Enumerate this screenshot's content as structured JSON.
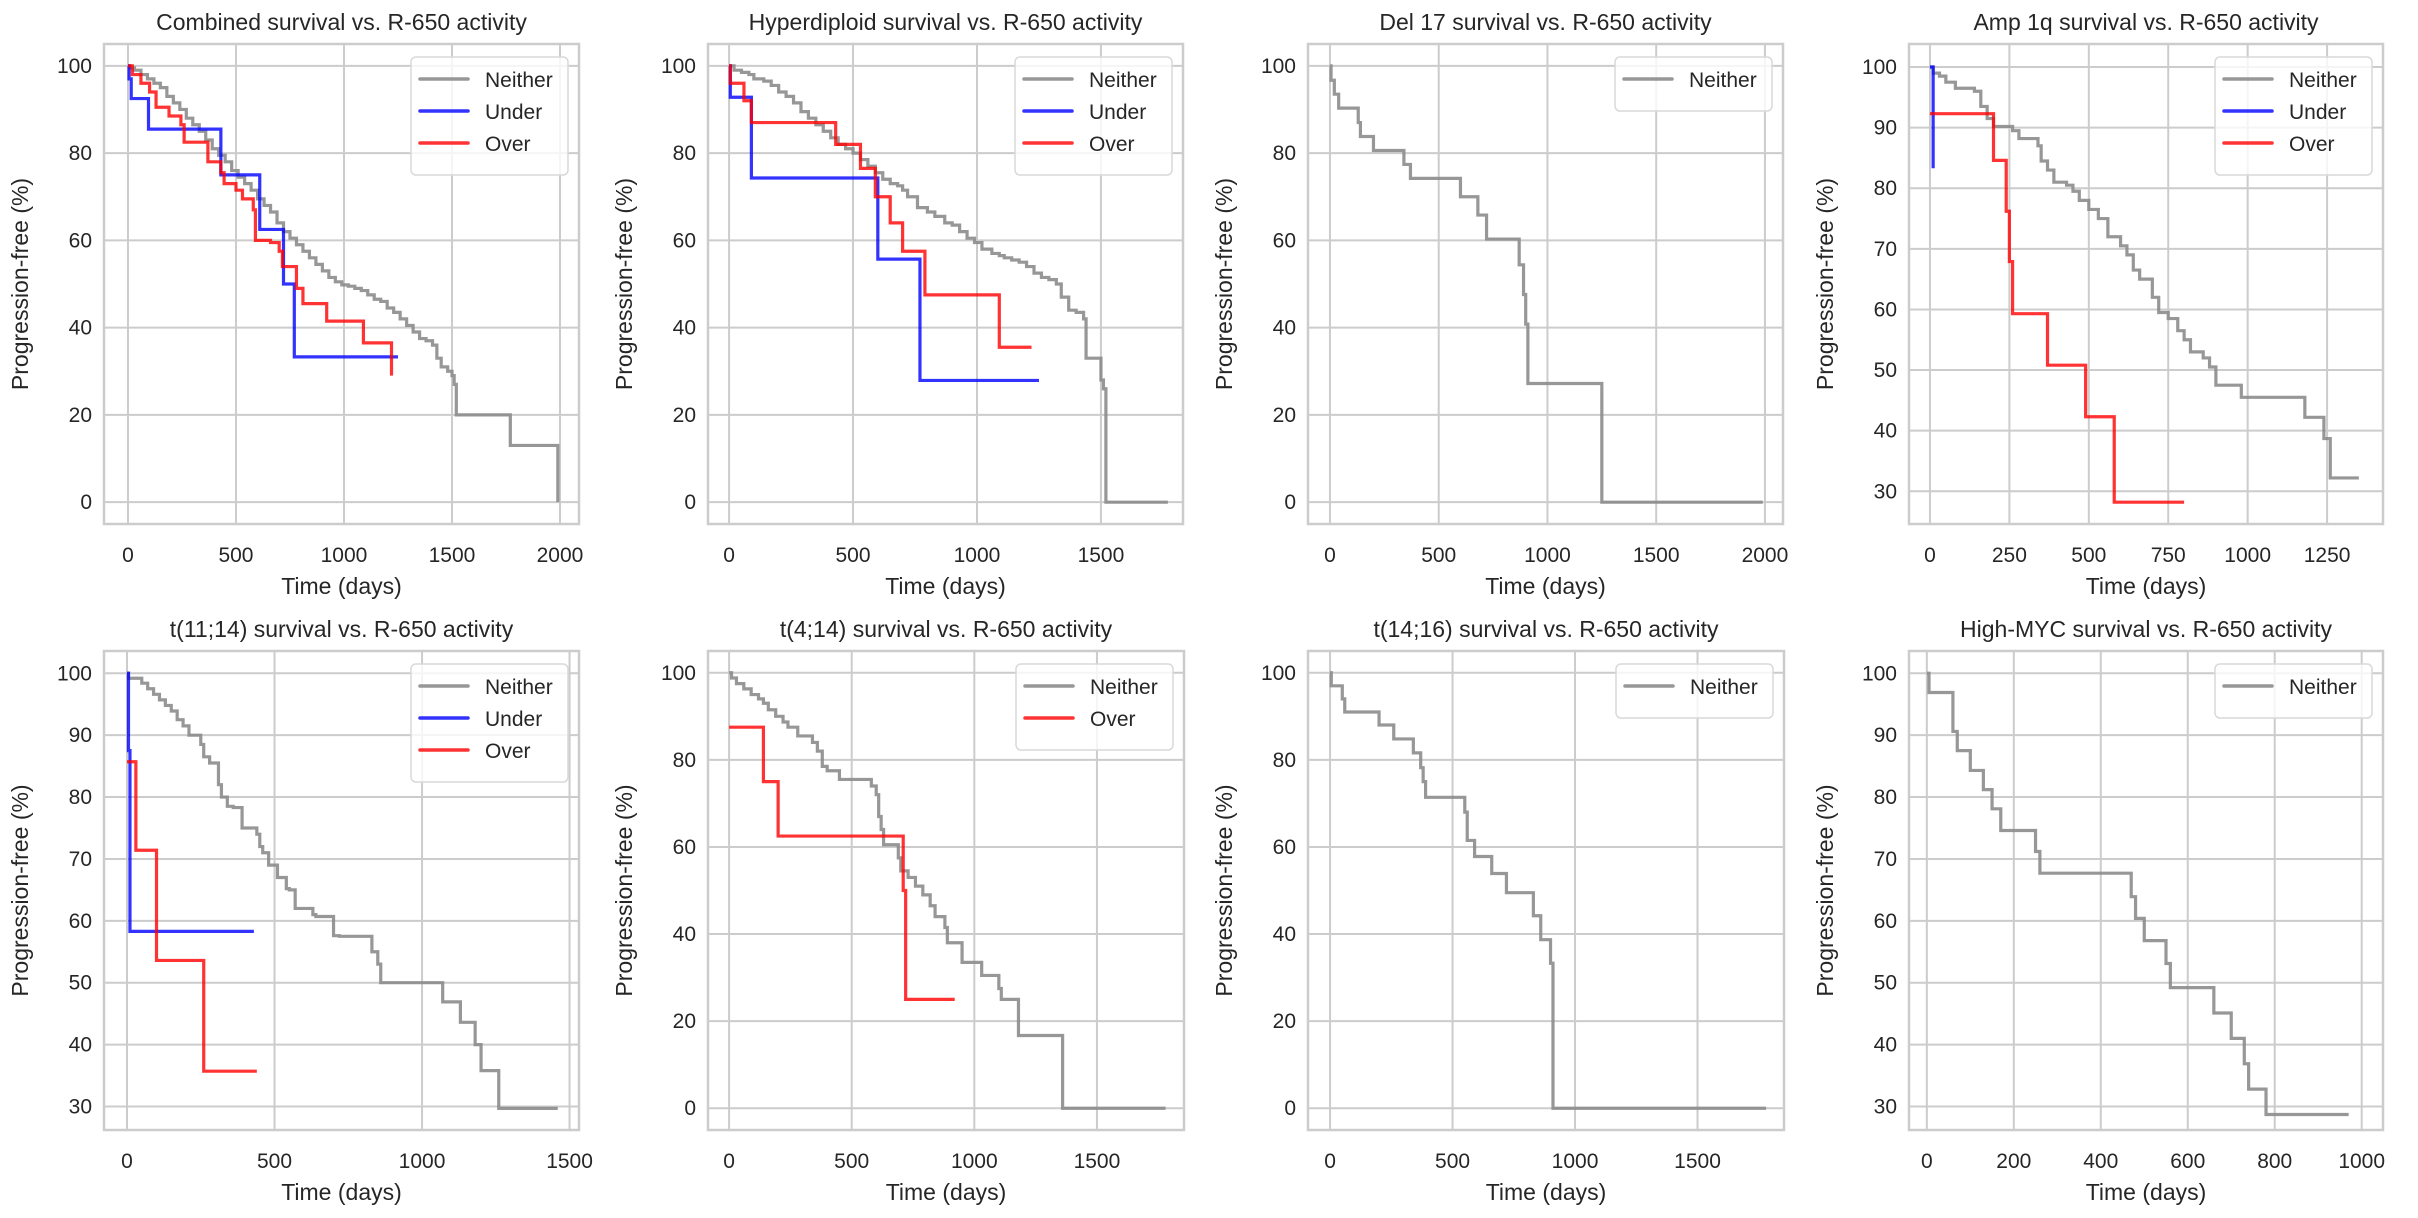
{
  "figure": {
    "background": "#ffffff",
    "grid_color": "#cccccc",
    "text_color": "#262626"
  },
  "series_styles": {
    "Neither": {
      "color": "#8c8c8c",
      "opacity": 0.9
    },
    "Under": {
      "color": "#0000ff",
      "opacity": 0.8
    },
    "Over": {
      "color": "#ff0000",
      "opacity": 0.8
    }
  },
  "chart_data": [
    {
      "type": "line",
      "step": true,
      "title": "Combined survival vs. R-650 activity",
      "xlabel": "Time (days)",
      "ylabel": "Progression-free (%)",
      "xlim": [
        -111,
        2088
      ],
      "ylim": [
        -5,
        105
      ],
      "xticks": [
        0,
        500,
        1000,
        1500,
        2000
      ],
      "yticks": [
        0,
        20,
        40,
        60,
        80,
        100
      ],
      "grid": true,
      "legend": "top-right",
      "series": [
        {
          "name": "Neither",
          "x": [
            0,
            10,
            30,
            60,
            90,
            120,
            150,
            180,
            210,
            240,
            270,
            300,
            330,
            360,
            390,
            420,
            450,
            480,
            510,
            540,
            570,
            600,
            630,
            660,
            690,
            720,
            750,
            780,
            810,
            840,
            870,
            900,
            930,
            960,
            990,
            1020,
            1050,
            1080,
            1110,
            1140,
            1170,
            1200,
            1230,
            1260,
            1290,
            1320,
            1350,
            1380,
            1410,
            1430,
            1450,
            1480,
            1500,
            1510,
            1520,
            1760,
            1770,
            1990
          ],
          "y": [
            100,
            99.5,
            99,
            98,
            97,
            96,
            95,
            93,
            91.5,
            90,
            88,
            86.5,
            85,
            83,
            81,
            79.5,
            78,
            76,
            74.5,
            73,
            71.5,
            69.5,
            68,
            66.5,
            64,
            62,
            60.5,
            59,
            57.5,
            56,
            54.5,
            53,
            51.5,
            50.5,
            49.8,
            49.5,
            49,
            48.5,
            47.5,
            46.5,
            46,
            44.5,
            43.5,
            42,
            40.5,
            39,
            37.5,
            37,
            36,
            33,
            31,
            30,
            29,
            27,
            20,
            20,
            13,
            0
          ]
        },
        {
          "name": "Under",
          "x": [
            0,
            5,
            15,
            95,
            430,
            610,
            720,
            770,
            1250
          ],
          "y": [
            100,
            97,
            92.5,
            85.5,
            75,
            62.5,
            50,
            33.3,
            33.3
          ]
        },
        {
          "name": "Over",
          "x": [
            0,
            20,
            60,
            100,
            130,
            190,
            245,
            260,
            370,
            430,
            445,
            500,
            530,
            580,
            590,
            660,
            700,
            715,
            780,
            810,
            920,
            1090,
            1220
          ],
          "y": [
            100,
            98,
            96,
            94,
            90.5,
            88.5,
            86.5,
            82.5,
            78,
            75.5,
            73,
            71.5,
            69.5,
            67,
            60,
            59.5,
            57.5,
            54,
            49,
            45.5,
            41.5,
            36.5,
            29
          ]
        }
      ]
    },
    {
      "type": "line",
      "step": true,
      "title": "Hyperdiploid survival vs. R-650 activity",
      "xlabel": "Time (days)",
      "ylabel": "Progression-free (%)",
      "xlim": [
        -85,
        1831
      ],
      "ylim": [
        -5,
        105
      ],
      "xticks": [
        0,
        500,
        1000,
        1500
      ],
      "yticks": [
        0,
        20,
        40,
        60,
        80,
        100
      ],
      "grid": true,
      "legend": "top-right",
      "series": [
        {
          "name": "Neither",
          "x": [
            0,
            20,
            50,
            80,
            100,
            140,
            170,
            200,
            230,
            260,
            290,
            320,
            350,
            380,
            410,
            440,
            470,
            500,
            530,
            560,
            590,
            620,
            650,
            680,
            700,
            720,
            760,
            800,
            830,
            870,
            900,
            930,
            960,
            990,
            1020,
            1060,
            1090,
            1110,
            1140,
            1170,
            1200,
            1230,
            1260,
            1290,
            1320,
            1340,
            1370,
            1400,
            1430,
            1440,
            1500,
            1510,
            1520,
            1770
          ],
          "y": [
            100,
            99,
            98.5,
            98,
            97,
            96.5,
            95.5,
            94,
            93,
            91.5,
            89.5,
            88,
            86.5,
            85,
            83.5,
            82,
            81,
            80,
            78.5,
            77,
            75.5,
            74,
            73,
            72.5,
            71.5,
            70,
            67.5,
            66.5,
            65.5,
            64,
            63.5,
            62,
            60.5,
            59.5,
            58,
            57,
            56.5,
            56,
            55.5,
            55,
            54,
            52.5,
            51.5,
            51,
            50,
            47,
            44,
            43.5,
            42,
            33,
            28,
            26,
            0,
            0
          ]
        },
        {
          "name": "Under",
          "x": [
            0,
            5,
            90,
            600,
            770,
            1250
          ],
          "y": [
            100,
            92.8,
            74.3,
            55.7,
            27.9,
            27.9
          ]
        },
        {
          "name": "Over",
          "x": [
            0,
            5,
            60,
            90,
            430,
            530,
            590,
            650,
            700,
            790,
            1090,
            1220
          ],
          "y": [
            100,
            96,
            92,
            87,
            82,
            76.5,
            70,
            64,
            57.5,
            47.5,
            35.5,
            35.5
          ]
        }
      ]
    },
    {
      "type": "line",
      "step": true,
      "title": "Del 17 survival vs. R-650 activity",
      "xlabel": "Time (days)",
      "ylabel": "Progression-free (%)",
      "xlim": [
        -101,
        2083
      ],
      "ylim": [
        -5,
        105
      ],
      "xticks": [
        0,
        500,
        1000,
        1500,
        2000
      ],
      "yticks": [
        0,
        20,
        40,
        60,
        80,
        100
      ],
      "grid": true,
      "legend": "top-right",
      "series": [
        {
          "name": "Neither",
          "x": [
            0,
            5,
            20,
            40,
            130,
            140,
            200,
            340,
            370,
            600,
            680,
            720,
            870,
            890,
            900,
            910,
            1250,
            1990
          ],
          "y": [
            100,
            96.7,
            93.5,
            90.3,
            87,
            83.8,
            80.6,
            77.4,
            74.2,
            70,
            65.8,
            60.3,
            54.4,
            47.6,
            40.8,
            27.2,
            0,
            0
          ]
        }
      ]
    },
    {
      "type": "line",
      "step": true,
      "title": "Amp 1q survival vs. R-650 activity",
      "xlabel": "Time (days)",
      "ylabel": "Progression-free (%)",
      "xlim": [
        -66,
        1426
      ],
      "ylim": [
        24.6,
        103.8
      ],
      "xticks": [
        0,
        250,
        500,
        750,
        1000,
        1250
      ],
      "yticks": [
        30,
        40,
        50,
        60,
        70,
        80,
        90,
        100
      ],
      "grid": true,
      "legend": "top-right",
      "series": [
        {
          "name": "Neither",
          "x": [
            0,
            10,
            30,
            50,
            80,
            140,
            160,
            180,
            200,
            260,
            280,
            340,
            350,
            370,
            390,
            430,
            450,
            470,
            500,
            530,
            560,
            600,
            620,
            640,
            660,
            700,
            720,
            750,
            780,
            800,
            820,
            860,
            880,
            900,
            980,
            1180,
            1240,
            1260,
            1350
          ],
          "y": [
            100,
            99,
            98.5,
            97.5,
            96.5,
            96,
            93.5,
            91.5,
            90.2,
            89.5,
            88.2,
            87,
            84.5,
            83,
            81,
            80.5,
            79.5,
            78,
            76.5,
            75,
            72,
            70.5,
            69,
            66.5,
            65,
            62,
            59.5,
            58.5,
            56.5,
            55,
            53,
            52,
            50.5,
            47.5,
            45.5,
            42.2,
            38.7,
            32.2,
            32.2
          ]
        },
        {
          "name": "Under",
          "x": [
            0,
            10
          ],
          "y": [
            100,
            83.3
          ]
        },
        {
          "name": "Over",
          "x": [
            0,
            200,
            240,
            250,
            260,
            270,
            370,
            490,
            580,
            800
          ],
          "y": [
            92.3,
            84.6,
            76.2,
            67.9,
            59.3,
            59.3,
            50.8,
            42.3,
            28.2,
            28.2
          ]
        }
      ]
    },
    {
      "type": "line",
      "step": true,
      "title": "t(11;14) survival vs. R-650 activity",
      "xlabel": "Time (days)",
      "ylabel": "Progression-free (%)",
      "xlim": [
        -78,
        1532
      ],
      "ylim": [
        26.2,
        103.6
      ],
      "xticks": [
        0,
        500,
        1000,
        1500
      ],
      "yticks": [
        30,
        40,
        50,
        60,
        70,
        80,
        90,
        100
      ],
      "grid": true,
      "legend": "top-right",
      "series": [
        {
          "name": "Neither",
          "x": [
            0,
            5,
            50,
            70,
            90,
            110,
            130,
            150,
            170,
            190,
            210,
            250,
            260,
            280,
            310,
            320,
            340,
            360,
            390,
            440,
            450,
            460,
            480,
            510,
            540,
            550,
            570,
            630,
            640,
            700,
            720,
            830,
            850,
            860,
            880,
            1070,
            1130,
            1180,
            1200,
            1260,
            1460
          ],
          "y": [
            100,
            99.2,
            98.4,
            97.5,
            96.6,
            95.7,
            94.8,
            93.9,
            92.5,
            91.5,
            90,
            88.5,
            86.5,
            85.5,
            82,
            80,
            78.5,
            78.3,
            75,
            74,
            72,
            71,
            69,
            67,
            65.2,
            65,
            62,
            61,
            60.7,
            57.6,
            57.5,
            55,
            53,
            50,
            50,
            46.9,
            43.6,
            40,
            35.8,
            29.7,
            29.7
          ]
        },
        {
          "name": "Under",
          "x": [
            0,
            5,
            10,
            430
          ],
          "y": [
            100,
            87.5,
            58.3,
            58.3
          ]
        },
        {
          "name": "Over",
          "x": [
            0,
            30,
            100,
            260,
            440
          ],
          "y": [
            85.7,
            71.4,
            53.6,
            35.7,
            35.7
          ]
        }
      ]
    },
    {
      "type": "line",
      "step": true,
      "title": "t(4;14) survival vs. R-650 activity",
      "xlabel": "Time (days)",
      "ylabel": "Progression-free (%)",
      "xlim": [
        -86,
        1855
      ],
      "ylim": [
        -5,
        105
      ],
      "xticks": [
        0,
        500,
        1000,
        1500
      ],
      "yticks": [
        0,
        20,
        40,
        60,
        80,
        100
      ],
      "grid": true,
      "legend": "top-right",
      "series": [
        {
          "name": "Neither",
          "x": [
            0,
            10,
            30,
            60,
            90,
            120,
            140,
            160,
            190,
            220,
            240,
            280,
            340,
            360,
            380,
            400,
            450,
            580,
            600,
            610,
            620,
            630,
            690,
            700,
            730,
            760,
            790,
            820,
            840,
            880,
            890,
            950,
            1030,
            1100,
            1110,
            1180,
            1360,
            1780
          ],
          "y": [
            100,
            98.8,
            97.5,
            96.3,
            95,
            94,
            93,
            91.5,
            90,
            88.7,
            87.5,
            85.5,
            84,
            82,
            78.5,
            77.5,
            75.5,
            74,
            72,
            67,
            64,
            60.5,
            57.5,
            54.5,
            53,
            51,
            49,
            46.5,
            44,
            41.5,
            38,
            33.5,
            30.5,
            27.5,
            25,
            16.7,
            0,
            0
          ]
        },
        {
          "name": "Over",
          "x": [
            0,
            140,
            200,
            710,
            720,
            920
          ],
          "y": [
            87.5,
            75,
            62.5,
            50,
            25,
            25
          ]
        }
      ]
    },
    {
      "type": "line",
      "step": true,
      "title": "t(14;16) survival vs. R-650 activity",
      "xlabel": "Time (days)",
      "ylabel": "Progression-free (%)",
      "xlim": [
        -90,
        1853
      ],
      "ylim": [
        -5,
        105
      ],
      "xticks": [
        0,
        500,
        1000,
        1500
      ],
      "yticks": [
        0,
        20,
        40,
        60,
        80,
        100
      ],
      "grid": true,
      "legend": "top-right",
      "series": [
        {
          "name": "Neither",
          "x": [
            0,
            5,
            50,
            60,
            200,
            260,
            340,
            370,
            380,
            390,
            550,
            560,
            590,
            660,
            720,
            830,
            860,
            900,
            910,
            1780
          ],
          "y": [
            100,
            97,
            94,
            91,
            88,
            84.8,
            81.6,
            78.2,
            75,
            71.4,
            68,
            61.5,
            57.8,
            53.9,
            49.5,
            44.2,
            38.7,
            33.3,
            0,
            0
          ]
        }
      ]
    },
    {
      "type": "line",
      "step": true,
      "title": "High-MYC survival vs. R-650 activity",
      "xlabel": "Time (days)",
      "ylabel": "Progression-free (%)",
      "xlim": [
        -41,
        1049
      ],
      "ylim": [
        26.2,
        103.6
      ],
      "xticks": [
        0,
        200,
        400,
        600,
        800,
        1000
      ],
      "yticks": [
        30,
        40,
        50,
        60,
        70,
        80,
        90,
        100
      ],
      "grid": true,
      "legend": "top-right",
      "series": [
        {
          "name": "Neither",
          "x": [
            0,
            5,
            60,
            70,
            100,
            130,
            150,
            170,
            250,
            260,
            470,
            480,
            500,
            550,
            560,
            660,
            700,
            730,
            740,
            780,
            970
          ],
          "y": [
            100,
            96.9,
            90.6,
            87.5,
            84.3,
            81.2,
            78.1,
            74.6,
            71.2,
            67.7,
            63.9,
            60.4,
            56.8,
            53.1,
            49.2,
            45.1,
            41,
            36.9,
            32.8,
            28.7,
            28.7
          ]
        }
      ]
    }
  ]
}
